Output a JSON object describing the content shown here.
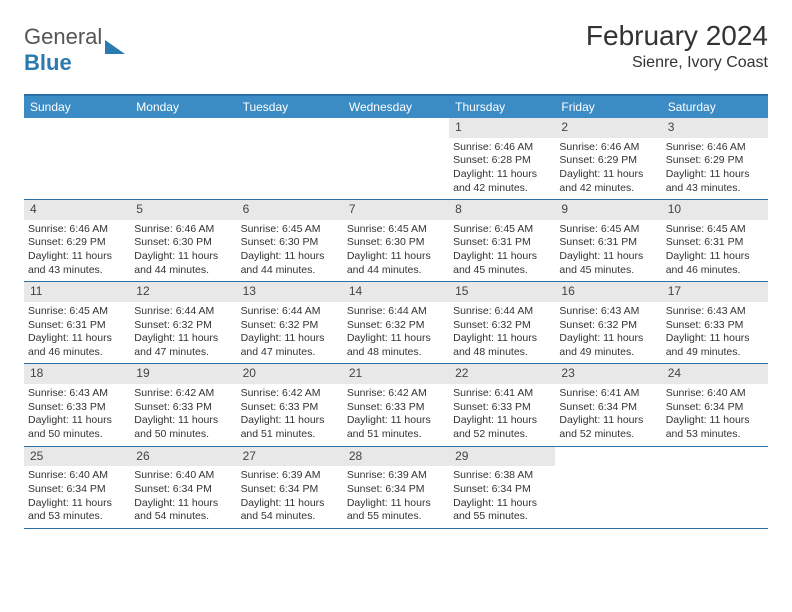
{
  "logo": {
    "general": "General",
    "blue": "Blue"
  },
  "title": "February 2024",
  "location": "Sienre, Ivory Coast",
  "header_bg": "#3b8bc4",
  "border_color": "#2a6fa8",
  "daynum_bg": "#e8e8e8",
  "days_of_week": [
    "Sunday",
    "Monday",
    "Tuesday",
    "Wednesday",
    "Thursday",
    "Friday",
    "Saturday"
  ],
  "weeks": [
    [
      {
        "empty": true
      },
      {
        "empty": true
      },
      {
        "empty": true
      },
      {
        "empty": true
      },
      {
        "n": "1",
        "sr": "Sunrise: 6:46 AM",
        "ss": "Sunset: 6:28 PM",
        "dl": "Daylight: 11 hours and 42 minutes."
      },
      {
        "n": "2",
        "sr": "Sunrise: 6:46 AM",
        "ss": "Sunset: 6:29 PM",
        "dl": "Daylight: 11 hours and 42 minutes."
      },
      {
        "n": "3",
        "sr": "Sunrise: 6:46 AM",
        "ss": "Sunset: 6:29 PM",
        "dl": "Daylight: 11 hours and 43 minutes."
      }
    ],
    [
      {
        "n": "4",
        "sr": "Sunrise: 6:46 AM",
        "ss": "Sunset: 6:29 PM",
        "dl": "Daylight: 11 hours and 43 minutes."
      },
      {
        "n": "5",
        "sr": "Sunrise: 6:46 AM",
        "ss": "Sunset: 6:30 PM",
        "dl": "Daylight: 11 hours and 44 minutes."
      },
      {
        "n": "6",
        "sr": "Sunrise: 6:45 AM",
        "ss": "Sunset: 6:30 PM",
        "dl": "Daylight: 11 hours and 44 minutes."
      },
      {
        "n": "7",
        "sr": "Sunrise: 6:45 AM",
        "ss": "Sunset: 6:30 PM",
        "dl": "Daylight: 11 hours and 44 minutes."
      },
      {
        "n": "8",
        "sr": "Sunrise: 6:45 AM",
        "ss": "Sunset: 6:31 PM",
        "dl": "Daylight: 11 hours and 45 minutes."
      },
      {
        "n": "9",
        "sr": "Sunrise: 6:45 AM",
        "ss": "Sunset: 6:31 PM",
        "dl": "Daylight: 11 hours and 45 minutes."
      },
      {
        "n": "10",
        "sr": "Sunrise: 6:45 AM",
        "ss": "Sunset: 6:31 PM",
        "dl": "Daylight: 11 hours and 46 minutes."
      }
    ],
    [
      {
        "n": "11",
        "sr": "Sunrise: 6:45 AM",
        "ss": "Sunset: 6:31 PM",
        "dl": "Daylight: 11 hours and 46 minutes."
      },
      {
        "n": "12",
        "sr": "Sunrise: 6:44 AM",
        "ss": "Sunset: 6:32 PM",
        "dl": "Daylight: 11 hours and 47 minutes."
      },
      {
        "n": "13",
        "sr": "Sunrise: 6:44 AM",
        "ss": "Sunset: 6:32 PM",
        "dl": "Daylight: 11 hours and 47 minutes."
      },
      {
        "n": "14",
        "sr": "Sunrise: 6:44 AM",
        "ss": "Sunset: 6:32 PM",
        "dl": "Daylight: 11 hours and 48 minutes."
      },
      {
        "n": "15",
        "sr": "Sunrise: 6:44 AM",
        "ss": "Sunset: 6:32 PM",
        "dl": "Daylight: 11 hours and 48 minutes."
      },
      {
        "n": "16",
        "sr": "Sunrise: 6:43 AM",
        "ss": "Sunset: 6:32 PM",
        "dl": "Daylight: 11 hours and 49 minutes."
      },
      {
        "n": "17",
        "sr": "Sunrise: 6:43 AM",
        "ss": "Sunset: 6:33 PM",
        "dl": "Daylight: 11 hours and 49 minutes."
      }
    ],
    [
      {
        "n": "18",
        "sr": "Sunrise: 6:43 AM",
        "ss": "Sunset: 6:33 PM",
        "dl": "Daylight: 11 hours and 50 minutes."
      },
      {
        "n": "19",
        "sr": "Sunrise: 6:42 AM",
        "ss": "Sunset: 6:33 PM",
        "dl": "Daylight: 11 hours and 50 minutes."
      },
      {
        "n": "20",
        "sr": "Sunrise: 6:42 AM",
        "ss": "Sunset: 6:33 PM",
        "dl": "Daylight: 11 hours and 51 minutes."
      },
      {
        "n": "21",
        "sr": "Sunrise: 6:42 AM",
        "ss": "Sunset: 6:33 PM",
        "dl": "Daylight: 11 hours and 51 minutes."
      },
      {
        "n": "22",
        "sr": "Sunrise: 6:41 AM",
        "ss": "Sunset: 6:33 PM",
        "dl": "Daylight: 11 hours and 52 minutes."
      },
      {
        "n": "23",
        "sr": "Sunrise: 6:41 AM",
        "ss": "Sunset: 6:34 PM",
        "dl": "Daylight: 11 hours and 52 minutes."
      },
      {
        "n": "24",
        "sr": "Sunrise: 6:40 AM",
        "ss": "Sunset: 6:34 PM",
        "dl": "Daylight: 11 hours and 53 minutes."
      }
    ],
    [
      {
        "n": "25",
        "sr": "Sunrise: 6:40 AM",
        "ss": "Sunset: 6:34 PM",
        "dl": "Daylight: 11 hours and 53 minutes."
      },
      {
        "n": "26",
        "sr": "Sunrise: 6:40 AM",
        "ss": "Sunset: 6:34 PM",
        "dl": "Daylight: 11 hours and 54 minutes."
      },
      {
        "n": "27",
        "sr": "Sunrise: 6:39 AM",
        "ss": "Sunset: 6:34 PM",
        "dl": "Daylight: 11 hours and 54 minutes."
      },
      {
        "n": "28",
        "sr": "Sunrise: 6:39 AM",
        "ss": "Sunset: 6:34 PM",
        "dl": "Daylight: 11 hours and 55 minutes."
      },
      {
        "n": "29",
        "sr": "Sunrise: 6:38 AM",
        "ss": "Sunset: 6:34 PM",
        "dl": "Daylight: 11 hours and 55 minutes."
      },
      {
        "empty": true
      },
      {
        "empty": true
      }
    ]
  ]
}
